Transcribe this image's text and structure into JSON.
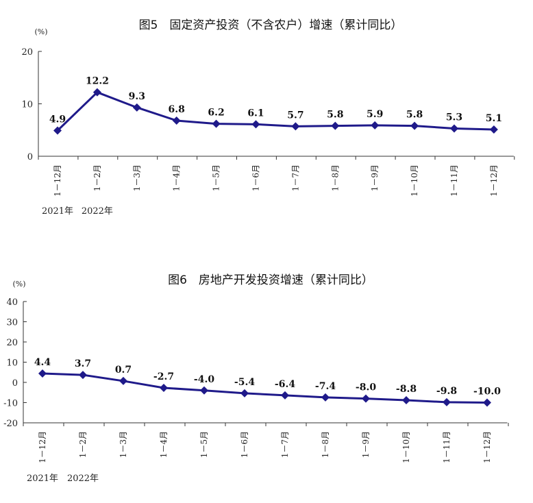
{
  "chart_data": [
    {
      "type": "line",
      "title": "图5　固定资产投资（不含农户）增速（累计同比）",
      "unit": "(%)",
      "categories": [
        "1－12月",
        "1－2月",
        "1－3月",
        "1－4月",
        "1－5月",
        "1－6月",
        "1－7月",
        "1－8月",
        "1－9月",
        "1－10月",
        "1－11月",
        "1－12月"
      ],
      "year_labels": [
        {
          "category_index": 0,
          "text": "2021年"
        },
        {
          "category_index": 1,
          "text": "2022年"
        }
      ],
      "values": [
        4.9,
        12.2,
        9.3,
        6.8,
        6.2,
        6.1,
        5.7,
        5.8,
        5.9,
        5.8,
        5.3,
        5.1
      ],
      "data_labels": [
        "4.9",
        "12.2",
        "9.3",
        "6.8",
        "6.2",
        "6.1",
        "5.7",
        "5.8",
        "5.9",
        "5.8",
        "5.3",
        "5.1"
      ],
      "yticks": [
        "0",
        "10",
        "20"
      ],
      "ylim": [
        0,
        20
      ],
      "color": "#1f1a8a"
    },
    {
      "type": "line",
      "title": "图6　房地产开发投资增速（累计同比）",
      "unit": "(%)",
      "categories": [
        "1－12月",
        "1－2月",
        "1－3月",
        "1－4月",
        "1－5月",
        "1－6月",
        "1－7月",
        "1－8月",
        "1－9月",
        "1－10月",
        "1－11月",
        "1－12月"
      ],
      "year_labels": [
        {
          "category_index": 0,
          "text": "2021年"
        },
        {
          "category_index": 1,
          "text": "2022年"
        }
      ],
      "values": [
        4.4,
        3.7,
        0.7,
        -2.7,
        -4.0,
        -5.4,
        -6.4,
        -7.4,
        -8.0,
        -8.8,
        -9.8,
        -10.0
      ],
      "data_labels": [
        "4.4",
        "3.7",
        "0.7",
        "-2.7",
        "-4.0",
        "-5.4",
        "-6.4",
        "-7.4",
        "-8.0",
        "-8.8",
        "-9.8",
        "-10.0"
      ],
      "yticks": [
        "-20",
        "-10",
        "0",
        "10",
        "20",
        "30",
        "40"
      ],
      "ylim": [
        -20,
        40
      ],
      "color": "#1f1a8a"
    }
  ]
}
